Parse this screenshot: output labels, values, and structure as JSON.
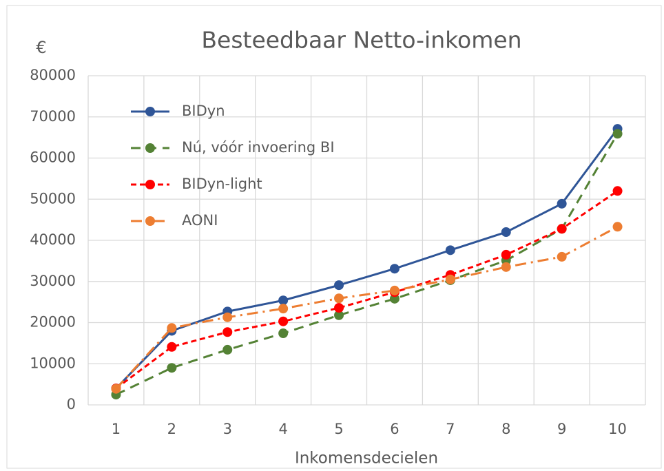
{
  "chart_data": {
    "type": "line",
    "title": "Besteedbaar Netto-inkomen",
    "y_label": "€",
    "x_label": "Inkomensdecielen",
    "categories": [
      1,
      2,
      3,
      4,
      5,
      6,
      7,
      8,
      9,
      10
    ],
    "ylim": [
      0,
      80000
    ],
    "yticks": [
      0,
      10000,
      20000,
      30000,
      40000,
      50000,
      60000,
      70000,
      80000
    ],
    "grid": true,
    "legend": "upper left",
    "series": [
      {
        "name": "BIDyn",
        "color": "#2f5597",
        "dash": "solid",
        "values": [
          4000,
          18000,
          22700,
          25400,
          29100,
          33100,
          37600,
          42000,
          48900,
          67100
        ]
      },
      {
        "name": "Nú, vóór invoering BI",
        "color": "#548235",
        "dash": "dash",
        "values": [
          2500,
          9000,
          13400,
          17400,
          21800,
          25800,
          30300,
          35100,
          42800,
          65900
        ]
      },
      {
        "name": "BIDyn-light",
        "color": "#ff0000",
        "dash": "sysDash",
        "values": [
          4000,
          14100,
          17700,
          20300,
          23600,
          27400,
          31600,
          36500,
          42800,
          52000
        ]
      },
      {
        "name": "AONI",
        "color": "#ed7d31",
        "dash": "dashDot",
        "values": [
          3900,
          18700,
          21300,
          23400,
          25900,
          27800,
          30500,
          33500,
          36000,
          43300
        ]
      }
    ]
  }
}
